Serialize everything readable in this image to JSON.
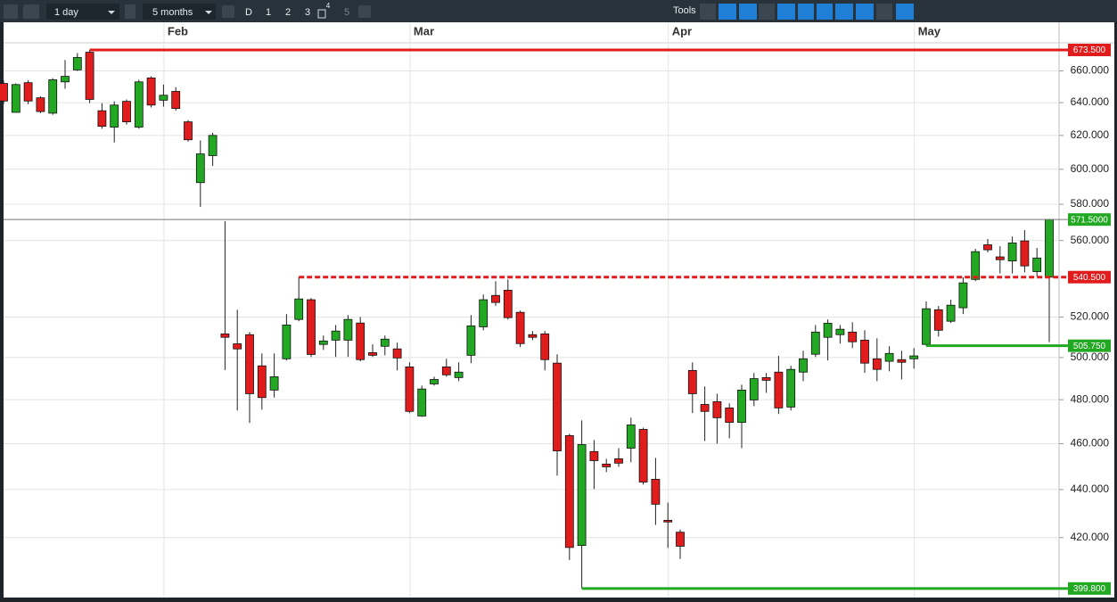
{
  "toolbar": {
    "interval": "1 day",
    "range": "5 months",
    "buttons": [
      "D",
      "1",
      "2",
      "3",
      "4",
      "5"
    ],
    "tools": "Tools"
  },
  "chart_data": {
    "type": "candlestick",
    "log_scale": true,
    "grid": true,
    "up_color": "#23a823",
    "down_color": "#e01c1c",
    "categories": [
      null,
      null,
      null,
      null,
      null,
      null,
      null,
      null,
      null,
      null,
      null,
      null,
      null,
      "Feb",
      null,
      null,
      null,
      null,
      null,
      null,
      null,
      null,
      null,
      null,
      null,
      null,
      null,
      null,
      null,
      null,
      null,
      null,
      null,
      "Mar",
      null,
      null,
      null,
      null,
      null,
      null,
      null,
      null,
      null,
      null,
      null,
      null,
      null,
      null,
      null,
      null,
      null,
      null,
      null,
      null,
      "Apr",
      null,
      null,
      null,
      null,
      null,
      null,
      null,
      null,
      null,
      null,
      null,
      null,
      null,
      null,
      null,
      null,
      null,
      null,
      null,
      "May",
      null,
      null,
      null,
      null,
      null,
      null,
      null,
      null,
      null,
      null,
      null
    ],
    "open": [
      652,
      634,
      652.5,
      643,
      633.5,
      653,
      660.6,
      672,
      635,
      625,
      640.8,
      625,
      655.5,
      641.5,
      647,
      628.2,
      592.3,
      608,
      511.6,
      506.7,
      511.2,
      496,
      484.5,
      499.4,
      518.8,
      528.8,
      506.4,
      508.5,
      508.5,
      517,
      502.4,
      505.5,
      504.2,
      495.5,
      472.5,
      487.4,
      495.5,
      490.4,
      501.1,
      515.1,
      531,
      533.7,
      522.4,
      511.2,
      511.6,
      497.3,
      463.6,
      416.8,
      456.5,
      451,
      453.3,
      458,
      466.4,
      444.4,
      427.1,
      422.2,
      493.8,
      477.8,
      479.1,
      476.2,
      469.6,
      479.9,
      490.4,
      493,
      476.6,
      493,
      501.6,
      509.9,
      511.2,
      512.5,
      508.5,
      499.4,
      498.2,
      499,
      499.4,
      506.4,
      523.7,
      517.9,
      524.7,
      539.3,
      557.7,
      551.2,
      549,
      559.8,
      543.4,
      540.5
    ],
    "high": [
      654,
      652,
      654,
      644,
      655.4,
      667,
      671.5,
      673.5,
      639.7,
      640.8,
      642,
      654.3,
      656.5,
      651.3,
      649.7,
      629.3,
      617,
      621.6,
      570.6,
      523.7,
      512.5,
      502,
      502,
      521.5,
      540.5,
      529.7,
      510.8,
      516,
      521,
      520,
      506.4,
      510.8,
      507.3,
      497.7,
      486.6,
      490.8,
      499.4,
      497.7,
      521,
      531.5,
      538.4,
      539.3,
      523.3,
      513,
      513,
      501.6,
      464.4,
      470.5,
      461.6,
      453.3,
      458,
      471.7,
      467.2,
      453.7,
      434.5,
      423.3,
      497.7,
      486.2,
      482.8,
      478.3,
      487,
      492.6,
      492.6,
      500.8,
      496,
      503.3,
      516,
      518.8,
      516,
      517.4,
      513.4,
      509.4,
      505.5,
      503.3,
      504.6,
      527.9,
      525.6,
      528.8,
      540.4,
      555.5,
      560.8,
      556.9,
      562.2,
      565.7,
      556,
      571.5
    ],
    "low": [
      639,
      634,
      639,
      633.5,
      632.5,
      648.7,
      660,
      639.7,
      624,
      615.8,
      626.6,
      624,
      637,
      637.5,
      635,
      616.3,
      578.5,
      602,
      494,
      475,
      469.3,
      475.4,
      481,
      498.6,
      517.9,
      500.3,
      503.7,
      500.3,
      500.3,
      498.2,
      500.3,
      501.1,
      493.8,
      473.8,
      472.1,
      486.6,
      490.8,
      488.7,
      497.3,
      513.4,
      525.6,
      518.8,
      505.1,
      508.5,
      493.8,
      446,
      411,
      399.8,
      440.2,
      447.5,
      449.8,
      451.8,
      442.1,
      425.2,
      415.8,
      411.4,
      473.8,
      461.2,
      460,
      462.4,
      458,
      477,
      483.2,
      473.4,
      475,
      488.7,
      500.3,
      498.6,
      506.8,
      504.6,
      492.6,
      488.7,
      493.4,
      489.5,
      494.7,
      505.75,
      510.3,
      517,
      521.5,
      538.4,
      553.6,
      542.4,
      542.4,
      543,
      540.8,
      507.5
    ],
    "close": [
      641,
      651.3,
      641,
      634.5,
      654.3,
      656.5,
      668.6,
      642,
      625.5,
      638.5,
      628.2,
      653,
      638.5,
      644.6,
      636.4,
      617.4,
      609,
      620,
      509.9,
      504.2,
      482.8,
      481,
      490.8,
      516,
      529.2,
      501.5,
      508.1,
      513,
      518.8,
      499,
      501.1,
      509,
      499.8,
      474.6,
      485,
      489.5,
      491.7,
      493,
      515.6,
      528.8,
      527.4,
      519.7,
      506.8,
      509.9,
      499,
      456.8,
      416,
      459.6,
      452.5,
      449.8,
      451.4,
      468.4,
      443.2,
      433.8,
      426.4,
      416.5,
      482.8,
      474.6,
      471.7,
      469.6,
      484.5,
      489.9,
      489.1,
      476.2,
      494.3,
      499.4,
      512.5,
      516.9,
      513.9,
      507.7,
      497.3,
      494.3,
      502,
      497.7,
      500.8,
      524.2,
      513.4,
      526,
      537.5,
      554,
      555,
      549.7,
      558.7,
      546.4,
      550.6,
      571.5
    ],
    "ylim": [
      397,
      677
    ],
    "yticks": [
      {
        "value": 420,
        "label": "420.000"
      },
      {
        "value": 440,
        "label": "440.000"
      },
      {
        "value": 460,
        "label": "460.000"
      },
      {
        "value": 480,
        "label": "480.000"
      },
      {
        "value": 500,
        "label": "500.000"
      },
      {
        "value": 520,
        "label": "520.000"
      },
      {
        "value": 560,
        "label": "560.000"
      },
      {
        "value": 580,
        "label": "580.000"
      },
      {
        "value": 600,
        "label": "600.000"
      },
      {
        "value": 620,
        "label": "620.000"
      },
      {
        "value": 640,
        "label": "640.000"
      },
      {
        "value": 660,
        "label": "660.000"
      }
    ],
    "levels": [
      {
        "value": 673.5,
        "label": "673.500",
        "color": "#e01c1c",
        "style": "solid"
      },
      {
        "value": 571.5,
        "label": "571.5000",
        "color": "#23a823",
        "style": "current"
      },
      {
        "value": 540.5,
        "label": "540.500",
        "color": "#e01c1c",
        "style": "dashed"
      },
      {
        "value": 505.75,
        "label": "505.750",
        "color": "#23a823",
        "style": "solid"
      },
      {
        "value": 399.8,
        "label": "399.800",
        "color": "#23a823",
        "style": "solid"
      }
    ]
  }
}
